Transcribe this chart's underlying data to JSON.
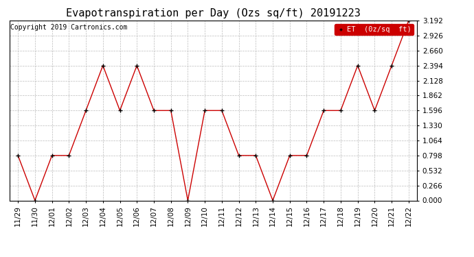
{
  "title": "Evapotranspiration per Day (Ozs sq/ft) 20191223",
  "copyright": "Copyright 2019 Cartronics.com",
  "legend_label": "ET  (0z/sq  ft)",
  "dates": [
    "11/29",
    "11/30",
    "12/01",
    "12/02",
    "12/03",
    "12/04",
    "12/05",
    "12/06",
    "12/07",
    "12/08",
    "12/09",
    "12/10",
    "12/11",
    "12/12",
    "12/13",
    "12/14",
    "12/15",
    "12/16",
    "12/17",
    "12/18",
    "12/19",
    "12/20",
    "12/21",
    "12/22"
  ],
  "values": [
    0.798,
    0.0,
    0.798,
    0.798,
    1.596,
    2.394,
    1.596,
    2.394,
    1.596,
    1.596,
    0.0,
    1.596,
    1.596,
    0.798,
    0.798,
    0.0,
    0.798,
    0.798,
    1.596,
    1.596,
    2.394,
    1.596,
    2.394,
    3.192
  ],
  "line_color": "#cc0000",
  "marker_color": "#000000",
  "background_color": "#ffffff",
  "grid_color": "#bbbbbb",
  "ylim": [
    0.0,
    3.192
  ],
  "yticks": [
    0.0,
    0.266,
    0.532,
    0.798,
    1.064,
    1.33,
    1.596,
    1.862,
    2.128,
    2.394,
    2.66,
    2.926,
    3.192
  ],
  "legend_bg": "#cc0000",
  "legend_text_color": "#ffffff",
  "title_fontsize": 11,
  "copyright_fontsize": 7,
  "tick_fontsize": 7.5,
  "legend_fontsize": 7.5
}
